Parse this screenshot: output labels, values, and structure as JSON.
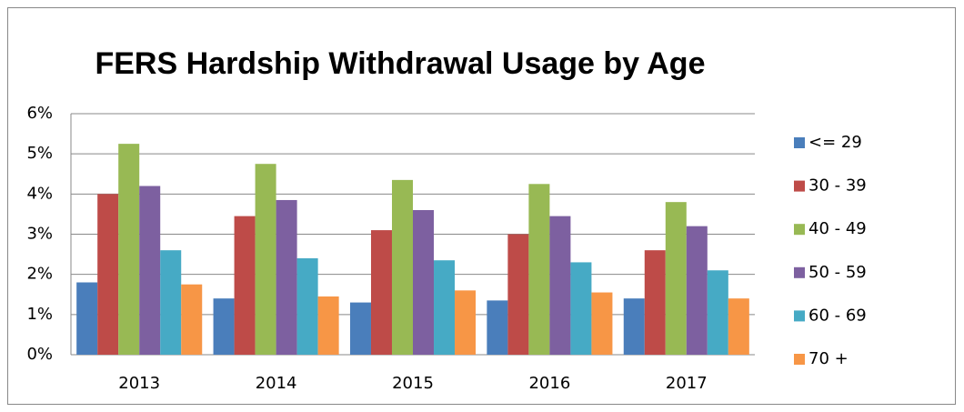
{
  "chart_data": {
    "type": "bar",
    "title": "FERS Hardship Withdrawal Usage by Age",
    "categories": [
      "2013",
      "2014",
      "2015",
      "2016",
      "2017"
    ],
    "series": [
      {
        "name": "<= 29",
        "color": "#4a7ebb",
        "values": [
          1.8,
          1.4,
          1.3,
          1.35,
          1.4
        ]
      },
      {
        "name": "30 - 39",
        "color": "#be4b48",
        "values": [
          4.0,
          3.45,
          3.1,
          3.0,
          2.6
        ]
      },
      {
        "name": "40 - 49",
        "color": "#98b954",
        "values": [
          5.25,
          4.75,
          4.35,
          4.25,
          3.8
        ]
      },
      {
        "name": "50 - 59",
        "color": "#7d60a0",
        "values": [
          4.2,
          3.85,
          3.6,
          3.45,
          3.2
        ]
      },
      {
        "name": "60 - 69",
        "color": "#46aac5",
        "values": [
          2.6,
          2.4,
          2.35,
          2.3,
          2.1
        ]
      },
      {
        "name": "70 +",
        "color": "#f79646",
        "values": [
          1.75,
          1.45,
          1.6,
          1.55,
          1.4
        ]
      }
    ],
    "ylim": [
      0,
      6
    ],
    "yticks": [
      {
        "value": 0,
        "label": "0%"
      },
      {
        "value": 1,
        "label": "1%"
      },
      {
        "value": 2,
        "label": "2%"
      },
      {
        "value": 3,
        "label": "3%"
      },
      {
        "value": 4,
        "label": "4%"
      },
      {
        "value": 5,
        "label": "5%"
      },
      {
        "value": 6,
        "label": "6%"
      }
    ],
    "grid": true,
    "legend": "right"
  }
}
